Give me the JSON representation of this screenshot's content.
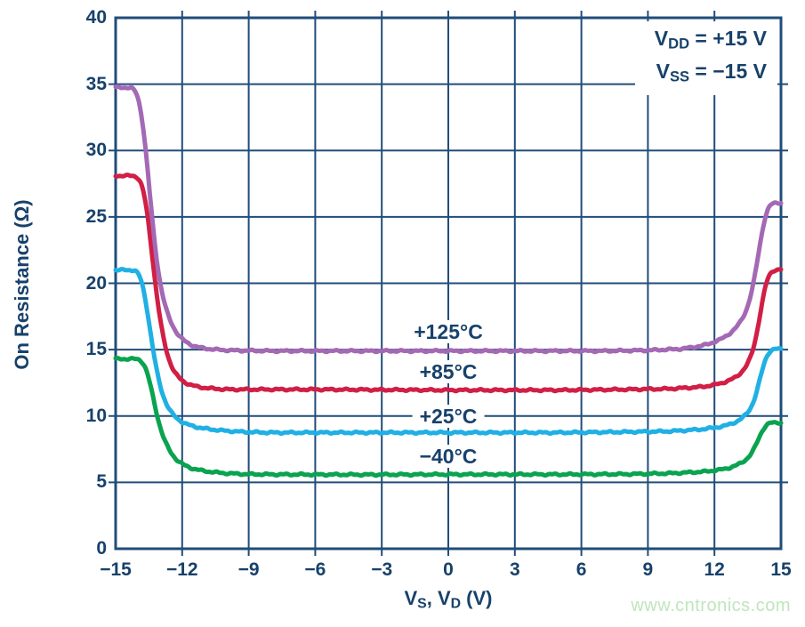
{
  "watermark": {
    "text": "www.cntronics.com",
    "color": "#bfe6bb"
  },
  "chart_data": {
    "type": "line",
    "title": "",
    "ylabel": "On Resistance (Ω)",
    "xlabel_parts": [
      {
        "text": "V"
      },
      {
        "sub": "S"
      },
      {
        "text": ", V"
      },
      {
        "sub": "D"
      },
      {
        "text": " (V)"
      }
    ],
    "annotation_lines": [
      {
        "parts": [
          {
            "text": "V"
          },
          {
            "sub": "DD"
          },
          {
            "text": " = +15 V"
          }
        ]
      },
      {
        "parts": [
          {
            "text": "V"
          },
          {
            "sub": "SS"
          },
          {
            "text": " = −15 V"
          }
        ]
      }
    ],
    "xlim": [
      -15,
      15
    ],
    "ylim": [
      0,
      40
    ],
    "grid": true,
    "legend_position": "inline-curve-labels",
    "colors": {
      "axis_line": "#204d7a",
      "axis_text": "#17416b",
      "background": "#ffffff"
    },
    "x_ticks": [
      {
        "v": -15,
        "label": "−15"
      },
      {
        "v": -12,
        "label": "−12"
      },
      {
        "v": -9,
        "label": "−9"
      },
      {
        "v": -6,
        "label": "−6"
      },
      {
        "v": -3,
        "label": "−3"
      },
      {
        "v": 0,
        "label": "0"
      },
      {
        "v": 3,
        "label": "3"
      },
      {
        "v": 6,
        "label": "6"
      },
      {
        "v": 9,
        "label": "9"
      },
      {
        "v": 12,
        "label": "12"
      },
      {
        "v": 15,
        "label": "15"
      }
    ],
    "y_ticks": [
      {
        "v": 0,
        "label": "0"
      },
      {
        "v": 5,
        "label": "5"
      },
      {
        "v": 10,
        "label": "10"
      },
      {
        "v": 15,
        "label": "15"
      },
      {
        "v": 20,
        "label": "20"
      },
      {
        "v": 25,
        "label": "25"
      },
      {
        "v": 30,
        "label": "30"
      },
      {
        "v": 35,
        "label": "35"
      },
      {
        "v": 40,
        "label": "40"
      }
    ],
    "series": [
      {
        "id": "temp-plus-125c",
        "label": "+125°C",
        "color": "#a469b4",
        "label_x": 0,
        "label_y": 16.35,
        "summary": {
          "left_plateau": 34.7,
          "mid_flat": 14.9,
          "right_plateau": 26.1
        },
        "points": [
          [
            -15,
            34.75
          ],
          [
            -14.15,
            34.75
          ],
          [
            -13.9,
            34.2
          ],
          [
            -13.7,
            31.5
          ],
          [
            -13.5,
            27.5
          ],
          [
            -13.3,
            23.5
          ],
          [
            -13.1,
            20.8
          ],
          [
            -12.9,
            18.9
          ],
          [
            -12.6,
            17.3
          ],
          [
            -12.3,
            16.3
          ],
          [
            -11.9,
            15.6
          ],
          [
            -11.4,
            15.2
          ],
          [
            -10.8,
            15.05
          ],
          [
            -10,
            14.95
          ],
          [
            -8,
            14.9
          ],
          [
            -4,
            14.9
          ],
          [
            0,
            14.9
          ],
          [
            4,
            14.9
          ],
          [
            7,
            14.9
          ],
          [
            9,
            14.95
          ],
          [
            10.5,
            15.05
          ],
          [
            11.5,
            15.3
          ],
          [
            12.3,
            15.75
          ],
          [
            13,
            16.6
          ],
          [
            13.5,
            18.0
          ],
          [
            13.8,
            20.0
          ],
          [
            14.0,
            22.3
          ],
          [
            14.15,
            24.3
          ],
          [
            14.3,
            25.6
          ],
          [
            14.45,
            26.0
          ],
          [
            14.7,
            26.05
          ],
          [
            15,
            26.1
          ]
        ]
      },
      {
        "id": "temp-plus-85c",
        "label": "+85°C",
        "color": "#d11f45",
        "label_x": 0,
        "label_y": 13.35,
        "summary": {
          "left_plateau": 28.1,
          "mid_flat": 12.0,
          "right_plateau": 21.0
        },
        "points": [
          [
            -15,
            28.1
          ],
          [
            -13.95,
            28.1
          ],
          [
            -13.75,
            27.6
          ],
          [
            -13.55,
            25.5
          ],
          [
            -13.35,
            22.0
          ],
          [
            -13.15,
            18.8
          ],
          [
            -12.95,
            16.5
          ],
          [
            -12.7,
            14.6
          ],
          [
            -12.4,
            13.3
          ],
          [
            -12.0,
            12.6
          ],
          [
            -11.5,
            12.25
          ],
          [
            -10.9,
            12.1
          ],
          [
            -10,
            12.0
          ],
          [
            -6,
            12.0
          ],
          [
            0,
            11.95
          ],
          [
            5,
            11.95
          ],
          [
            8,
            12.0
          ],
          [
            10,
            12.05
          ],
          [
            11.5,
            12.2
          ],
          [
            12.3,
            12.45
          ],
          [
            13,
            12.9
          ],
          [
            13.5,
            13.8
          ],
          [
            13.8,
            15.0
          ],
          [
            14.0,
            16.8
          ],
          [
            14.15,
            18.8
          ],
          [
            14.3,
            20.3
          ],
          [
            14.45,
            20.9
          ],
          [
            14.6,
            21.0
          ],
          [
            15,
            21.05
          ]
        ]
      },
      {
        "id": "temp-plus-25c",
        "label": "+25°C",
        "color": "#20b0e4",
        "label_x": 0,
        "label_y": 10.0,
        "summary": {
          "left_plateau": 21.0,
          "mid_flat": 8.75,
          "right_plateau": 15.05
        },
        "points": [
          [
            -15,
            21.0
          ],
          [
            -13.95,
            21.0
          ],
          [
            -13.8,
            20.5
          ],
          [
            -13.6,
            18.5
          ],
          [
            -13.4,
            15.8
          ],
          [
            -13.2,
            13.6
          ],
          [
            -13.0,
            12.1
          ],
          [
            -12.75,
            10.9
          ],
          [
            -12.45,
            10.1
          ],
          [
            -12.1,
            9.6
          ],
          [
            -11.6,
            9.25
          ],
          [
            -11.0,
            9.05
          ],
          [
            -10.2,
            8.9
          ],
          [
            -9.2,
            8.8
          ],
          [
            -8,
            8.75
          ],
          [
            -4,
            8.75
          ],
          [
            0,
            8.75
          ],
          [
            5,
            8.75
          ],
          [
            8,
            8.8
          ],
          [
            10,
            8.85
          ],
          [
            11.5,
            9.0
          ],
          [
            12.5,
            9.25
          ],
          [
            13.2,
            9.7
          ],
          [
            13.7,
            10.6
          ],
          [
            13.95,
            11.8
          ],
          [
            14.1,
            13.2
          ],
          [
            14.25,
            14.4
          ],
          [
            14.4,
            14.95
          ],
          [
            14.6,
            15.05
          ],
          [
            15,
            15.05
          ]
        ]
      },
      {
        "id": "temp-minus-40c",
        "label": "−40°C",
        "color": "#0aa34f",
        "label_x": 0,
        "label_y": 6.95,
        "summary": {
          "left_plateau": 14.3,
          "mid_flat": 5.6,
          "right_plateau": 9.5
        },
        "points": [
          [
            -15,
            14.3
          ],
          [
            -13.8,
            14.3
          ],
          [
            -13.6,
            13.8
          ],
          [
            -13.4,
            12.2
          ],
          [
            -13.2,
            10.4
          ],
          [
            -13.0,
            9.0
          ],
          [
            -12.75,
            7.9
          ],
          [
            -12.45,
            7.0
          ],
          [
            -12.1,
            6.45
          ],
          [
            -11.6,
            6.05
          ],
          [
            -11.0,
            5.85
          ],
          [
            -10.2,
            5.7
          ],
          [
            -9.2,
            5.62
          ],
          [
            -8,
            5.6
          ],
          [
            -4,
            5.58
          ],
          [
            0,
            5.6
          ],
          [
            5,
            5.6
          ],
          [
            8,
            5.62
          ],
          [
            10,
            5.68
          ],
          [
            11.5,
            5.8
          ],
          [
            12.5,
            6.0
          ],
          [
            13.2,
            6.4
          ],
          [
            13.7,
            7.1
          ],
          [
            13.95,
            8.0
          ],
          [
            14.1,
            8.9
          ],
          [
            14.25,
            9.35
          ],
          [
            14.4,
            9.5
          ],
          [
            15,
            9.5
          ]
        ]
      }
    ]
  }
}
